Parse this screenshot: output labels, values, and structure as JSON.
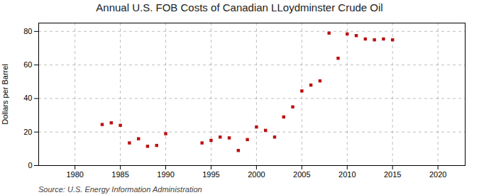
{
  "chart_data": {
    "type": "scatter",
    "title": "Annual U.S. FOB Costs of Canadian LLoydminster Crude Oil",
    "ylabel": "Dollars per Barrel",
    "source": "Source: U.S. Energy Information Administration",
    "x": [
      1983,
      1984,
      1985,
      1986,
      1987,
      1988,
      1989,
      1990,
      1994,
      1995,
      1996,
      1997,
      1998,
      1999,
      2000,
      2001,
      2002,
      2003,
      2004,
      2005,
      2006,
      2007,
      2008,
      2009,
      2010,
      2011,
      2012,
      2013,
      2014,
      2015
    ],
    "values": [
      24.5,
      25.5,
      24.0,
      13.5,
      16.0,
      11.5,
      12.0,
      19.0,
      13.5,
      15.0,
      17.0,
      16.5,
      9.0,
      15.5,
      23.0,
      21.0,
      17.0,
      29.0,
      35.0,
      44.5,
      48.0,
      50.5,
      79.0,
      64.0,
      78.5,
      77.5,
      75.5,
      75.0,
      75.5,
      75.0
    ],
    "color": "#bb1111",
    "marker": "square",
    "xlim": [
      1976,
      2023
    ],
    "xticks": [
      1980,
      1985,
      1990,
      1995,
      2000,
      2005,
      2010,
      2015,
      2020
    ],
    "ylim": [
      0,
      85
    ],
    "yticks": [
      0,
      20,
      40,
      60,
      80
    ],
    "grid": true
  }
}
